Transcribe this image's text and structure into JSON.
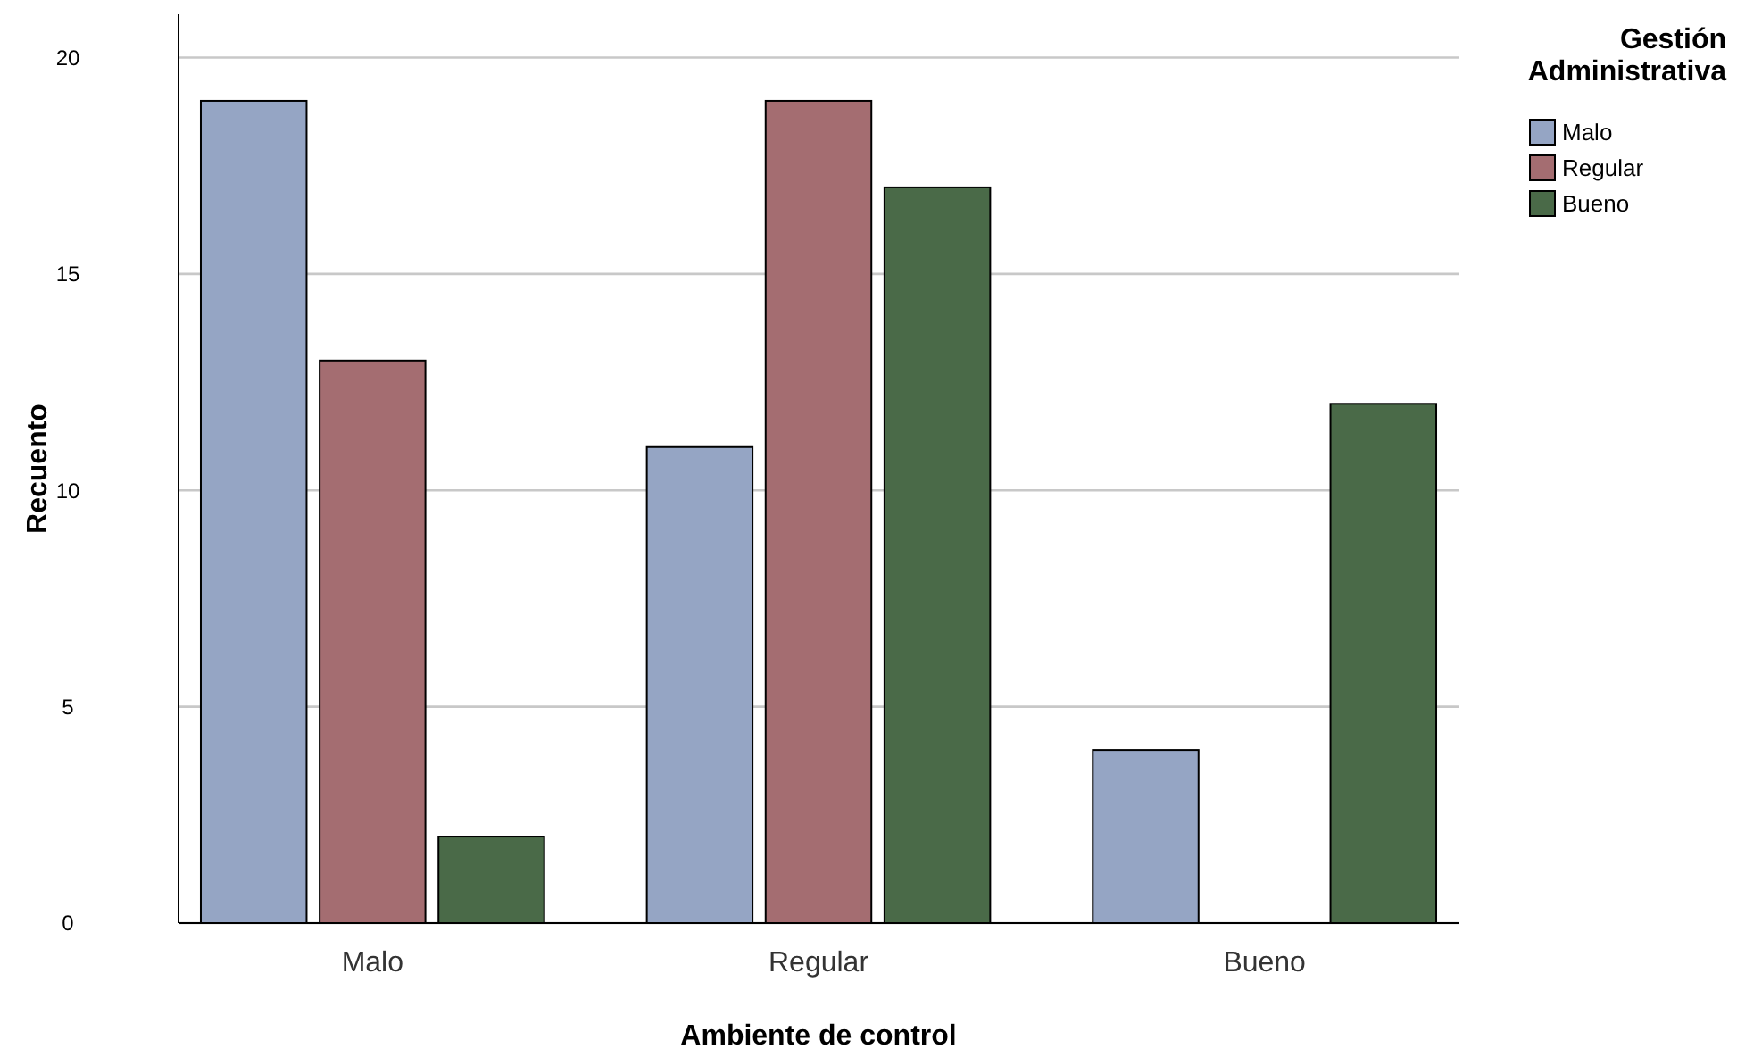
{
  "chart_data": {
    "type": "bar",
    "xlabel": "Ambiente de control",
    "ylabel": "Recuento",
    "legend_title": "Gestión Administrativa",
    "categories": [
      "Malo",
      "Regular",
      "Bueno"
    ],
    "series": [
      {
        "name": "Malo",
        "color": "#95a5c4",
        "values": [
          19,
          11,
          4
        ]
      },
      {
        "name": "Regular",
        "color": "#a46d71",
        "values": [
          13,
          19,
          null
        ]
      },
      {
        "name": "Bueno",
        "color": "#4a6a48",
        "values": [
          2,
          17,
          12
        ]
      }
    ],
    "ylim": [
      0,
      21
    ],
    "yticks": [
      0,
      5,
      10,
      15,
      20
    ],
    "grid": "y",
    "legend": "top right"
  }
}
